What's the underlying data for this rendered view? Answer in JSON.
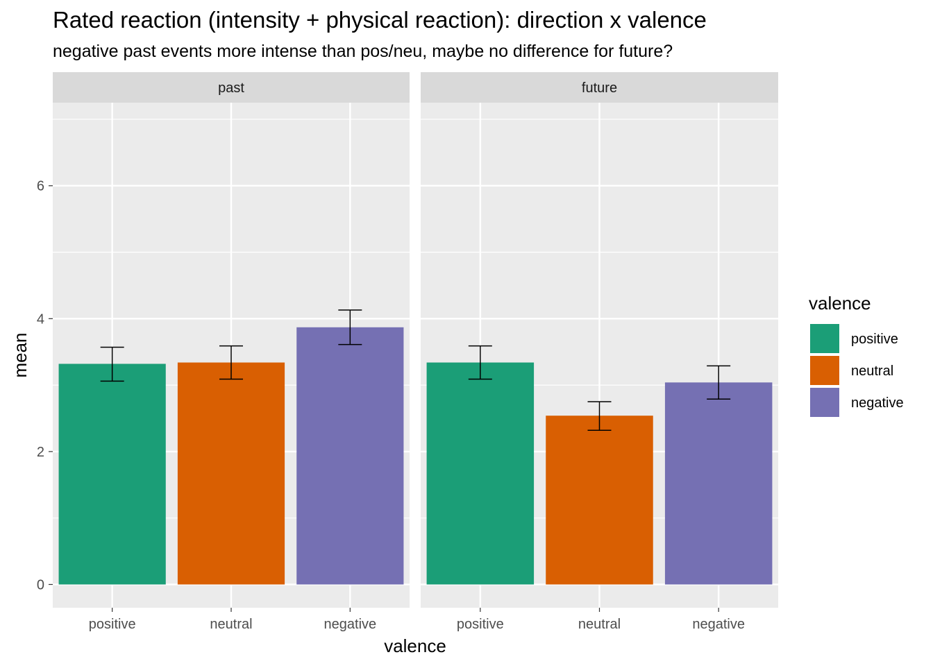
{
  "chart_data": {
    "type": "bar",
    "title": "Rated reaction (intensity + physical reaction): direction x valence",
    "subtitle": "negative past events more intense than pos/neu, maybe no difference for future?",
    "xlabel": "valence",
    "ylabel": "mean",
    "ylim": [
      -0.35,
      7.25
    ],
    "y_ticks": [
      0,
      2,
      4,
      6
    ],
    "categories": [
      "positive",
      "neutral",
      "negative"
    ],
    "facets": [
      {
        "label": "past",
        "values": [
          3.32,
          3.34,
          3.87
        ],
        "error_lower": [
          3.06,
          3.09,
          3.61
        ],
        "error_upper": [
          3.57,
          3.59,
          4.13
        ]
      },
      {
        "label": "future",
        "values": [
          3.34,
          2.54,
          3.04
        ],
        "error_lower": [
          3.09,
          2.32,
          2.79
        ],
        "error_upper": [
          3.59,
          2.75,
          3.29
        ]
      }
    ],
    "legend": {
      "title": "valence",
      "placement": "right",
      "entries": [
        "positive",
        "neutral",
        "negative"
      ]
    },
    "colors": {
      "positive": "#1B9E77",
      "neutral": "#D95F02",
      "negative": "#7570B3",
      "panel_background": "#EBEBEB",
      "strip_background": "#D9D9D9",
      "grid": "#FFFFFF"
    },
    "grid": true
  }
}
